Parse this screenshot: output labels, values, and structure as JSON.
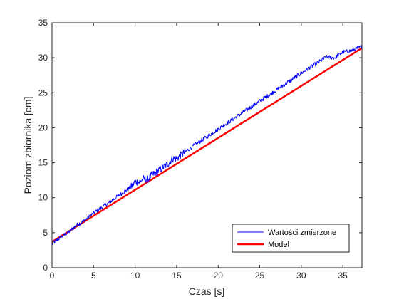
{
  "chart_data": {
    "type": "line",
    "xlabel": "Czas [s]",
    "ylabel": "Poziom zbiornika [cm]",
    "xlim": [
      0,
      37.3
    ],
    "ylim": [
      0,
      35
    ],
    "x_ticks": [
      "0",
      "5",
      "10",
      "15",
      "20",
      "25",
      "30",
      "35"
    ],
    "y_ticks": [
      "0",
      "5",
      "10",
      "15",
      "20",
      "25",
      "30",
      "35"
    ],
    "grid": false,
    "legend_position": "bottom-right",
    "series": [
      {
        "name": "Wartości zmierzone",
        "color": "#0000ff",
        "style": "noisy-thin",
        "x": [
          0,
          1,
          2,
          3,
          4,
          5,
          6,
          7,
          8,
          9,
          9.5,
          10,
          10.5,
          11,
          11.5,
          12,
          13,
          14,
          14.5,
          15,
          16,
          17,
          18,
          19,
          20,
          21,
          22,
          23,
          24,
          25,
          26,
          27,
          28,
          29,
          30,
          31,
          32,
          33,
          34,
          35,
          36,
          37.3
        ],
        "y": [
          3.4,
          4.3,
          5.1,
          6.1,
          6.8,
          7.8,
          8.6,
          9.4,
          10.3,
          11.1,
          11.5,
          12.3,
          12.2,
          12.7,
          12.6,
          13.2,
          14.0,
          14.9,
          15.6,
          15.6,
          16.5,
          17.4,
          18.2,
          19.0,
          19.8,
          20.6,
          21.4,
          22.2,
          23.0,
          23.8,
          24.6,
          25.4,
          26.2,
          27.0,
          27.8,
          28.6,
          29.3,
          30.1,
          30.0,
          30.8,
          31.0,
          31.6
        ]
      },
      {
        "name": "Model",
        "color": "#ff0000",
        "style": "thick",
        "x": [
          0,
          37.3
        ],
        "y": [
          3.7,
          31.4
        ]
      }
    ]
  }
}
